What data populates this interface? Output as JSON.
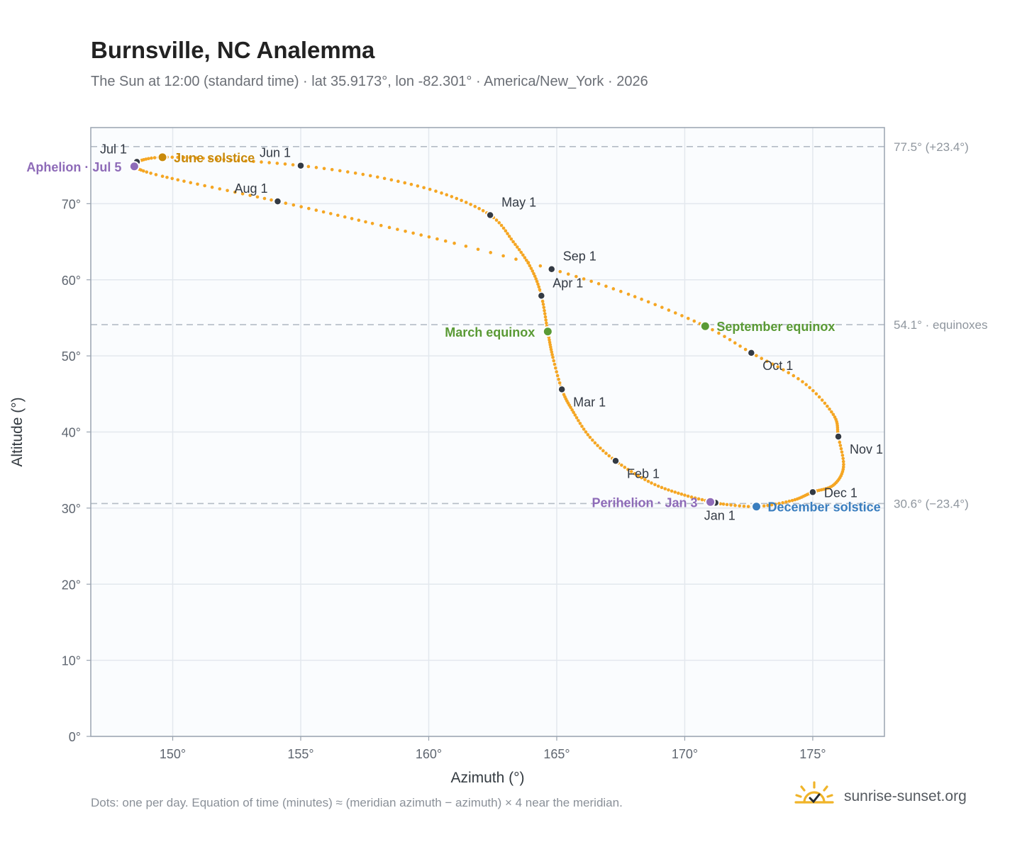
{
  "title": "Burnsville, NC Analemma",
  "subtitle": "The Sun at 12:00 (standard time) · lat 35.9173°, lon -82.301° · America/New_York · 2026",
  "footnote": "Dots: one per day. Equation of time (minutes) ≈ (meridian azimuth − azimuth) × 4 near the meridian.",
  "brand": {
    "name": "sunrise-sunset.org",
    "icon": "sunrise-check-icon",
    "color": "#f0b429"
  },
  "colors": {
    "path": "#f5a623",
    "month_dot": "#333a44",
    "solstice_june": "#c98a0c",
    "solstice_december": "#3a7ebf",
    "equinox": "#5a9a35",
    "apsis": "#8e6bb8",
    "reference_line": "#b4bcc6",
    "plot_background": "#fafcfe",
    "grid": "#e3e8ee",
    "frame": "#9aa4b0"
  },
  "chart_data": {
    "type": "scatter",
    "title": "Burnsville, NC Analemma",
    "xlabel": "Azimuth (°)",
    "ylabel": "Altitude (°)",
    "xlim": [
      146.8,
      177.8
    ],
    "ylim": [
      0,
      80
    ],
    "x_ticks": [
      150,
      155,
      160,
      165,
      170,
      175
    ],
    "x_tick_labels": [
      "150°",
      "155°",
      "160°",
      "165°",
      "170°",
      "175°"
    ],
    "y_ticks": [
      0,
      10,
      20,
      30,
      40,
      50,
      60,
      70
    ],
    "y_tick_labels": [
      "0°",
      "10°",
      "20°",
      "30°",
      "40°",
      "50°",
      "60°",
      "70°"
    ],
    "grid": true,
    "path_anchors_by_day": [
      {
        "day": 0,
        "az": 171.2,
        "alt": 30.7
      },
      {
        "day": 10,
        "az": 170.0,
        "alt": 31.7
      },
      {
        "day": 20,
        "az": 168.7,
        "alt": 33.3
      },
      {
        "day": 31,
        "az": 167.3,
        "alt": 36.2
      },
      {
        "day": 40,
        "az": 166.3,
        "alt": 39.3
      },
      {
        "day": 50,
        "az": 165.6,
        "alt": 42.9
      },
      {
        "day": 59,
        "az": 165.2,
        "alt": 45.6
      },
      {
        "day": 68,
        "az": 164.85,
        "alt": 49.8
      },
      {
        "day": 78,
        "az": 164.65,
        "alt": 53.2
      },
      {
        "day": 90,
        "az": 164.4,
        "alt": 57.9
      },
      {
        "day": 100,
        "az": 164.0,
        "alt": 61.5
      },
      {
        "day": 110,
        "az": 163.3,
        "alt": 65.0
      },
      {
        "day": 120,
        "az": 162.4,
        "alt": 68.5
      },
      {
        "day": 131,
        "az": 160.5,
        "alt": 71.4
      },
      {
        "day": 141,
        "az": 158.0,
        "alt": 73.5
      },
      {
        "day": 151,
        "az": 155.0,
        "alt": 75.0
      },
      {
        "day": 161,
        "az": 152.0,
        "alt": 75.8
      },
      {
        "day": 171,
        "az": 149.6,
        "alt": 76.1
      },
      {
        "day": 181,
        "az": 148.6,
        "alt": 75.5
      },
      {
        "day": 185,
        "az": 148.5,
        "alt": 74.9
      },
      {
        "day": 195,
        "az": 149.6,
        "alt": 73.6
      },
      {
        "day": 212,
        "az": 154.1,
        "alt": 70.3
      },
      {
        "day": 225,
        "az": 157.8,
        "alt": 67.4
      },
      {
        "day": 235,
        "az": 161.0,
        "alt": 64.8
      },
      {
        "day": 243,
        "az": 164.8,
        "alt": 61.4
      },
      {
        "day": 253,
        "az": 167.8,
        "alt": 58.1
      },
      {
        "day": 265,
        "az": 170.8,
        "alt": 53.9
      },
      {
        "day": 273,
        "az": 172.6,
        "alt": 50.4
      },
      {
        "day": 283,
        "az": 174.6,
        "alt": 46.6
      },
      {
        "day": 294,
        "az": 175.8,
        "alt": 42.3
      },
      {
        "day": 304,
        "az": 176.0,
        "alt": 39.4
      },
      {
        "day": 314,
        "az": 176.2,
        "alt": 35.4
      },
      {
        "day": 324,
        "az": 175.8,
        "alt": 33.0
      },
      {
        "day": 334,
        "az": 175.0,
        "alt": 32.1
      },
      {
        "day": 344,
        "az": 174.2,
        "alt": 31.0
      },
      {
        "day": 354,
        "az": 172.8,
        "alt": 30.2
      },
      {
        "day": 364,
        "az": 171.3,
        "alt": 30.6
      },
      {
        "day": 365,
        "az": 171.2,
        "alt": 30.7
      }
    ],
    "month_points": [
      {
        "label": "Jan 1",
        "az": 171.2,
        "alt": 30.7,
        "label_pos": "below"
      },
      {
        "label": "Feb 1",
        "az": 167.3,
        "alt": 36.2,
        "label_pos": "below-right"
      },
      {
        "label": "Mar 1",
        "az": 165.2,
        "alt": 45.6,
        "label_pos": "below-right"
      },
      {
        "label": "Apr 1",
        "az": 164.4,
        "alt": 57.9,
        "label_pos": "above-right"
      },
      {
        "label": "May 1",
        "az": 162.4,
        "alt": 68.5,
        "label_pos": "above-right"
      },
      {
        "label": "Jun 1",
        "az": 155.0,
        "alt": 75.0,
        "label_pos": "above-left"
      },
      {
        "label": "Jul 1",
        "az": 148.6,
        "alt": 75.5,
        "label_pos": "above-left"
      },
      {
        "label": "Aug 1",
        "az": 154.1,
        "alt": 70.3,
        "label_pos": "above-left"
      },
      {
        "label": "Sep 1",
        "az": 164.8,
        "alt": 61.4,
        "label_pos": "above-right"
      },
      {
        "label": "Oct 1",
        "az": 172.6,
        "alt": 50.4,
        "label_pos": "below-right"
      },
      {
        "label": "Nov 1",
        "az": 176.0,
        "alt": 39.4,
        "label_pos": "below-right"
      },
      {
        "label": "Dec 1",
        "az": 175.0,
        "alt": 32.1,
        "label_pos": "right"
      }
    ],
    "highlights": [
      {
        "label": "June solstice",
        "az": 149.6,
        "alt": 76.1,
        "color_key": "solstice_june",
        "label_pos": "right"
      },
      {
        "label": "December solstice",
        "az": 172.8,
        "alt": 30.2,
        "color_key": "solstice_december",
        "label_pos": "right"
      },
      {
        "label": "March equinox",
        "az": 164.65,
        "alt": 53.2,
        "color_key": "equinox",
        "label_pos": "left"
      },
      {
        "label": "September equinox",
        "az": 170.8,
        "alt": 53.9,
        "color_key": "equinox",
        "label_pos": "right"
      },
      {
        "label": "Aphelion · Jul 5",
        "az": 148.5,
        "alt": 74.9,
        "color_key": "apsis",
        "label_pos": "left"
      },
      {
        "label": "Perihelion · Jan 3",
        "az": 171.0,
        "alt": 30.8,
        "color_key": "apsis",
        "label_pos": "left"
      }
    ],
    "reference_lines": [
      {
        "alt": 77.5,
        "label": "77.5° (+23.4°)"
      },
      {
        "alt": 54.1,
        "label": "54.1° · equinoxes"
      },
      {
        "alt": 30.6,
        "label": "30.6° (−23.4°)"
      }
    ]
  }
}
